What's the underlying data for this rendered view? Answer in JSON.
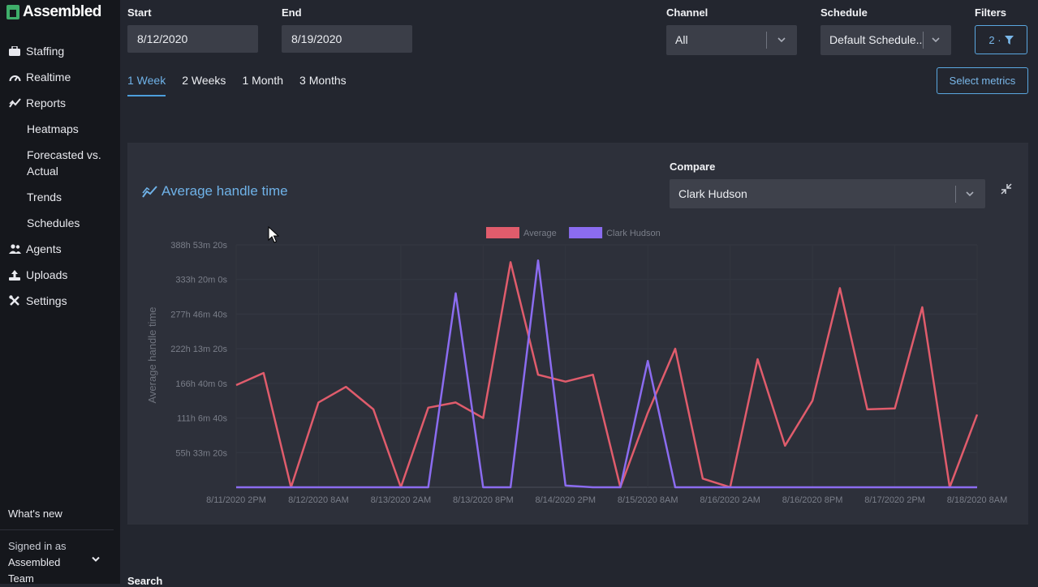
{
  "app": {
    "name": "Assembled"
  },
  "sidebar": {
    "items": [
      {
        "label": "Staffing",
        "icon": "staffing-icon"
      },
      {
        "label": "Realtime",
        "icon": "speedometer-icon"
      },
      {
        "label": "Reports",
        "icon": "trend-line-icon"
      }
    ],
    "sub_items": [
      {
        "label": "Heatmaps"
      },
      {
        "label": "Forecasted vs. Actual"
      },
      {
        "label": "Trends"
      },
      {
        "label": "Schedules"
      }
    ],
    "items_after": [
      {
        "label": "Agents",
        "icon": "users-icon"
      },
      {
        "label": "Uploads",
        "icon": "upload-icon"
      },
      {
        "label": "Settings",
        "icon": "tools-icon"
      }
    ],
    "whats_new": "What's new",
    "signed_in_label": "Signed in as",
    "signed_in_user": "Assembled Team"
  },
  "filters": {
    "start_label": "Start",
    "start_value": "8/12/2020",
    "end_label": "End",
    "end_value": "8/19/2020",
    "channel_label": "Channel",
    "channel_value": "All",
    "schedule_label": "Schedule",
    "schedule_value": "Default Schedule...",
    "filters_label": "Filters",
    "filters_count": "2 ·"
  },
  "range_tabs": [
    {
      "label": "1 Week",
      "active": true
    },
    {
      "label": "2 Weeks",
      "active": false
    },
    {
      "label": "1 Month",
      "active": false
    },
    {
      "label": "3 Months",
      "active": false
    }
  ],
  "select_metrics_label": "Select metrics",
  "card": {
    "title": "Average handle time",
    "compare_label": "Compare",
    "compare_value": "Clark Hudson"
  },
  "search_label": "Search",
  "chart_data": {
    "type": "line",
    "ylabel": "Average handle time",
    "y_ticks": [
      "",
      "55h 33m 20s",
      "111h 6m 40s",
      "166h 40m 0s",
      "222h 13m 20s",
      "277h 46m 40s",
      "333h 20m 0s",
      "388h 53m 20s"
    ],
    "y_tick_values": [
      0,
      200000,
      400000,
      600000,
      800000,
      1000000,
      1200000,
      1400000
    ],
    "ylim": [
      0,
      1400000
    ],
    "x_ticks": [
      "8/11/2020 2PM",
      "8/12/2020 8AM",
      "8/13/2020 2AM",
      "8/13/2020 8PM",
      "8/14/2020 2PM",
      "8/15/2020 8AM",
      "8/16/2020 2AM",
      "8/16/2020 8PM",
      "8/17/2020 2PM",
      "8/18/2020 8AM"
    ],
    "x_hours": [
      0,
      18,
      36,
      54,
      72,
      90,
      108,
      126,
      144,
      162
    ],
    "xlim_hours": [
      0,
      162
    ],
    "grid": true,
    "legend_position": "top",
    "series": [
      {
        "name": "Average",
        "color": "#e05c6c",
        "x_hours": [
          0,
          6,
          12,
          18,
          24,
          30,
          36,
          42,
          48,
          54,
          60,
          66,
          72,
          78,
          84,
          90,
          96,
          102,
          108,
          114,
          120,
          126,
          132,
          138,
          144,
          150,
          156,
          162
        ],
        "values": [
          590000,
          660000,
          0,
          490000,
          580000,
          450000,
          0,
          460000,
          490000,
          400000,
          1300000,
          650000,
          610000,
          650000,
          0,
          430000,
          800000,
          50000,
          0,
          740000,
          240000,
          500000,
          1150000,
          450000,
          455000,
          1040000,
          0,
          420000
        ]
      },
      {
        "name": "Clark Hudson",
        "color": "#8b6cf0",
        "x_hours": [
          0,
          6,
          12,
          18,
          24,
          30,
          36,
          42,
          48,
          54,
          60,
          66,
          72,
          78,
          84,
          90,
          96,
          102,
          108,
          114,
          120,
          126,
          132,
          138,
          144,
          150,
          156,
          162
        ],
        "values": [
          0,
          0,
          0,
          0,
          0,
          0,
          0,
          0,
          1120000,
          0,
          0,
          1310000,
          10000,
          0,
          0,
          730000,
          0,
          0,
          0,
          0,
          0,
          0,
          0,
          0,
          0,
          0,
          0,
          0
        ]
      }
    ]
  }
}
